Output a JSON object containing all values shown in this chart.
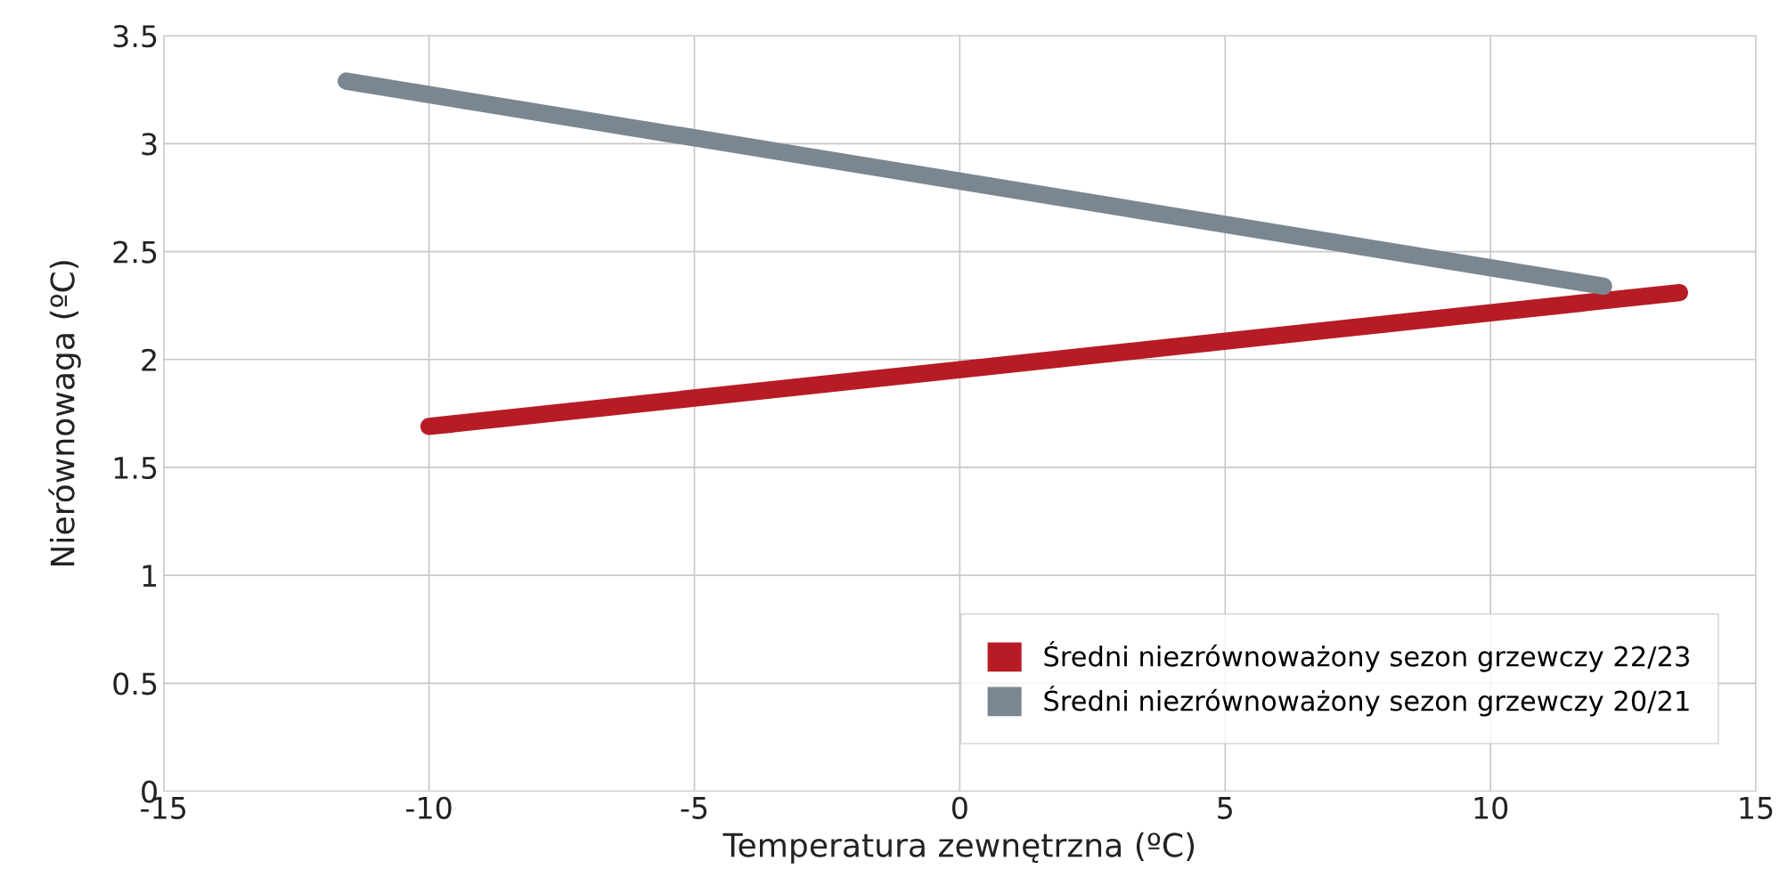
{
  "chart_data": {
    "type": "line",
    "xlabel": "Temperatura zewnętrzna (ºC)",
    "ylabel": "Nierównowaga (ºC)",
    "xlim": [
      -15,
      15
    ],
    "xticks": [
      {
        "value": -15,
        "label": "-15"
      },
      {
        "value": -10,
        "label": "-10"
      },
      {
        "value": -5,
        "label": "-5"
      },
      0,
      5,
      10,
      15
    ],
    "ylim": [
      0,
      3.5
    ],
    "yticks": [
      0,
      0.5,
      1,
      1.5,
      2,
      2.5,
      3,
      3.5
    ],
    "grid": true,
    "legend": "bottom right",
    "line_style": "solid",
    "series": [
      {
        "name": "Średni niezrównoważony sezon grzewczy 22/23",
        "color": "#b71c25",
        "x": [
          -10,
          13.56
        ],
        "values": [
          1.69,
          2.31
        ]
      },
      {
        "name": "Średni niezrównoważony sezon grzewczy 20/21",
        "color": "#7a8790",
        "x": [
          -11.56,
          12.13
        ],
        "values": [
          3.29,
          2.34
        ]
      }
    ]
  }
}
